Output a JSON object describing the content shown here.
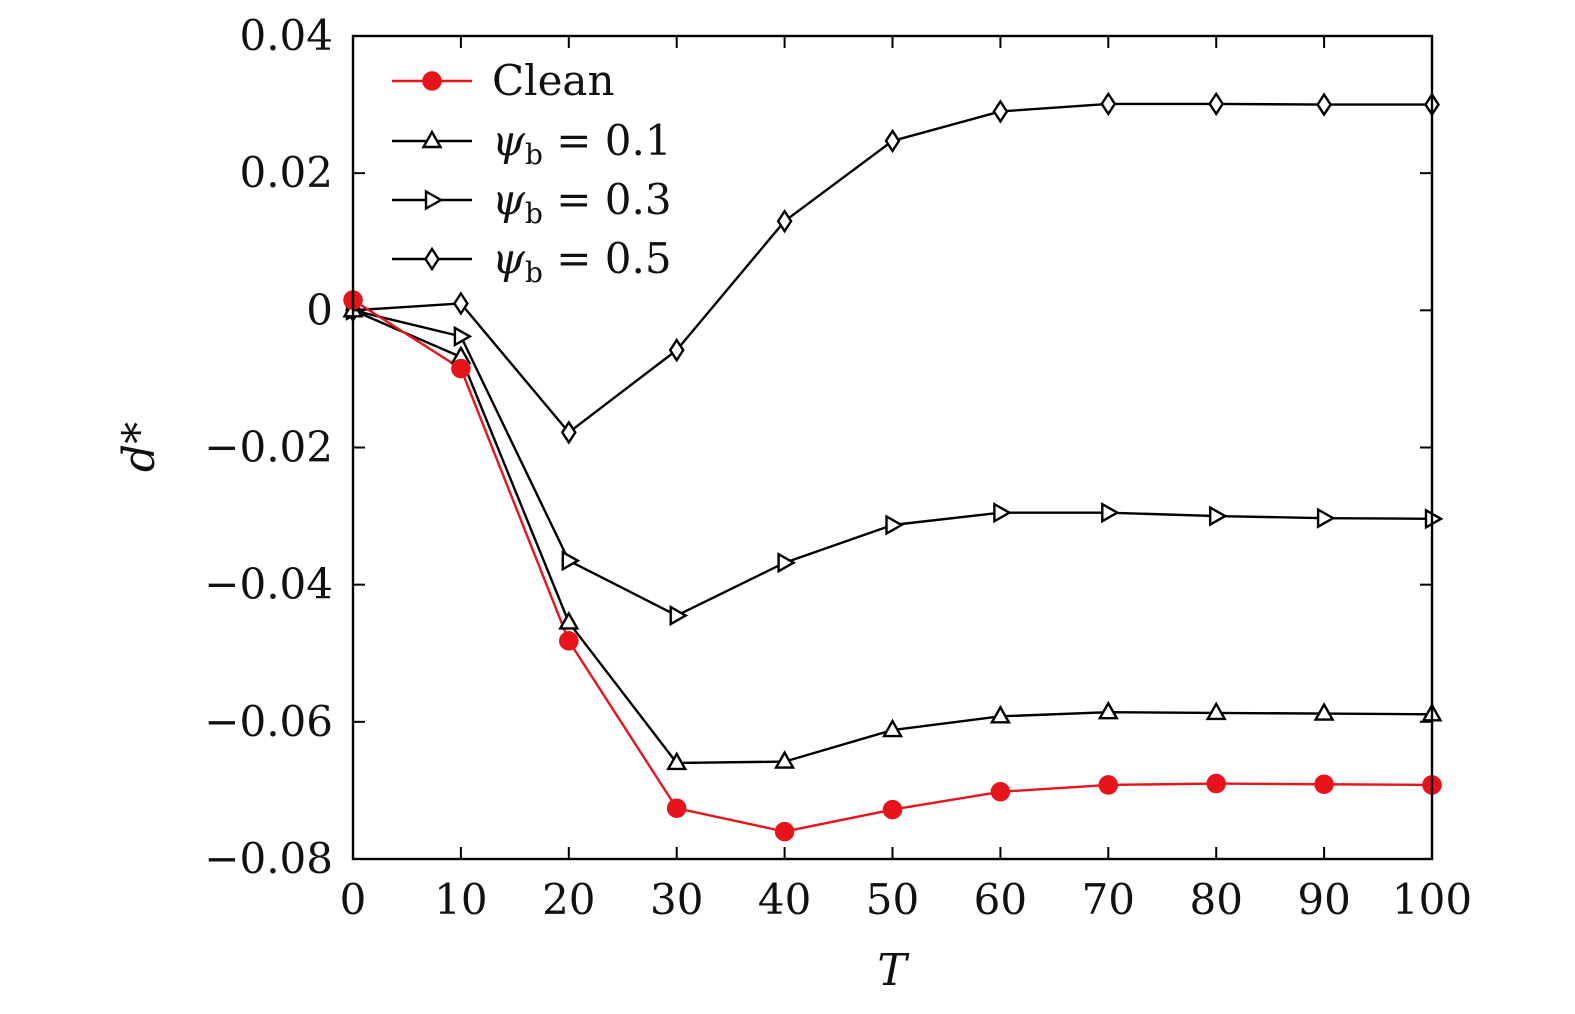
{
  "chart_data": {
    "type": "line",
    "xlabel": "T",
    "ylabel": "d*",
    "xlim": [
      0,
      100
    ],
    "ylim": [
      -0.08,
      0.04
    ],
    "x_ticks": [
      0,
      10,
      20,
      30,
      40,
      50,
      60,
      70,
      80,
      90,
      100
    ],
    "y_ticks": [
      0.04,
      0.02,
      0,
      -0.02,
      -0.04,
      -0.06,
      -0.08
    ],
    "x_tick_labels": [
      "0",
      "10",
      "20",
      "30",
      "40",
      "50",
      "60",
      "70",
      "80",
      "90",
      "100"
    ],
    "y_tick_labels": [
      "0.04",
      "0.02",
      "0",
      "−0.02",
      "−0.04",
      "−0.06",
      "−0.08"
    ],
    "legend_position": "top-left",
    "grid": false,
    "x": [
      0,
      10,
      20,
      30,
      40,
      50,
      60,
      70,
      80,
      90,
      100
    ],
    "series": [
      {
        "name": "Clean",
        "color": "#e8141b",
        "marker": "circle",
        "values": [
          0.0015,
          -0.0085,
          -0.0482,
          -0.0726,
          -0.076,
          -0.0728,
          -0.0702,
          -0.0692,
          -0.069,
          -0.0691,
          -0.0692
        ]
      },
      {
        "name": "ψb = 0.1",
        "legend_symbol": "ψ",
        "legend_sub": "b",
        "legend_rest": " = 0.1",
        "color": "#000000",
        "marker": "triangle-up",
        "values": [
          0.0,
          -0.0068,
          -0.0455,
          -0.066,
          -0.0658,
          -0.0612,
          -0.0592,
          -0.0586,
          -0.0587,
          -0.0588,
          -0.0589
        ]
      },
      {
        "name": "ψb = 0.3",
        "legend_symbol": "ψ",
        "legend_sub": "b",
        "legend_rest": " = 0.3",
        "color": "#000000",
        "marker": "triangle-right",
        "values": [
          0.0,
          -0.0038,
          -0.0365,
          -0.0445,
          -0.0368,
          -0.0313,
          -0.0295,
          -0.0295,
          -0.03,
          -0.0303,
          -0.0304
        ]
      },
      {
        "name": "ψb = 0.5",
        "legend_symbol": "ψ",
        "legend_sub": "b",
        "legend_rest": " = 0.5",
        "color": "#000000",
        "marker": "diamond",
        "values": [
          0.0,
          0.001,
          -0.0178,
          -0.0058,
          0.013,
          0.0247,
          0.029,
          0.0301,
          0.0301,
          0.03,
          0.03
        ]
      }
    ]
  }
}
